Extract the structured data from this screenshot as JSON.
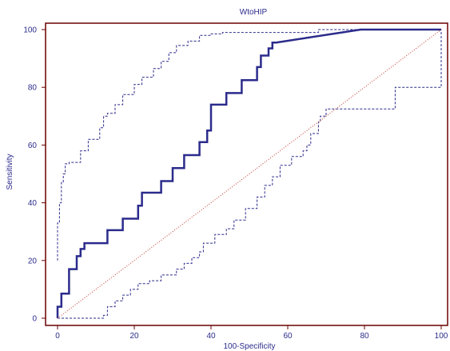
{
  "chart_data": {
    "type": "line",
    "title": "WtoHIP",
    "xlabel": "100-Specificity",
    "ylabel": "Sensitivity",
    "xlim": [
      0,
      100
    ],
    "ylim": [
      0,
      100
    ],
    "xticks": [
      0,
      20,
      40,
      60,
      80,
      100
    ],
    "yticks": [
      0,
      20,
      40,
      60,
      80,
      100
    ],
    "grid": false,
    "colors": {
      "frame": "#6b0000",
      "roc": "#2b2b8c",
      "ci": "#2b2b8c",
      "diagonal": "#c0392b",
      "text": "#2b2b8c"
    },
    "series": [
      {
        "style": "solid-thick",
        "x": [
          0,
          0,
          1,
          1,
          3,
          3,
          5,
          5,
          6,
          6,
          7,
          7,
          13,
          13,
          17,
          17,
          21,
          21,
          22,
          22,
          27,
          27,
          30,
          30,
          33,
          33,
          37,
          37,
          39,
          39,
          40,
          40,
          44,
          44,
          48,
          48,
          52,
          52,
          53,
          53,
          55,
          55,
          56,
          56,
          57,
          57,
          79,
          79,
          100
        ],
        "y": [
          0,
          4,
          4,
          8.5,
          8.5,
          17,
          17,
          21.5,
          21.5,
          24,
          24,
          26,
          26,
          30.5,
          30.5,
          34.5,
          34.5,
          39,
          39,
          43.5,
          43.5,
          47.5,
          47.5,
          52,
          52,
          56.5,
          56.5,
          61,
          61,
          65,
          65,
          74,
          74,
          78,
          78,
          82.5,
          82.5,
          87,
          87,
          91,
          91,
          93.5,
          93.5,
          95.5,
          95.5,
          95.5,
          100,
          100,
          100
        ]
      },
      {
        "style": "dashed",
        "x": [
          0,
          0,
          0.5,
          0.5,
          1,
          1,
          1.5,
          1.5,
          2,
          2,
          3,
          3,
          6,
          6,
          8,
          8,
          11,
          11,
          12,
          12,
          13,
          13,
          15,
          15,
          17,
          17,
          20,
          20,
          22,
          22,
          25,
          25,
          27,
          27,
          29,
          29,
          31,
          31,
          34,
          34,
          37,
          37,
          40,
          40,
          43,
          43,
          46,
          46,
          68,
          68,
          100
        ],
        "y": [
          20,
          33,
          33,
          40,
          40,
          47,
          47,
          50,
          50,
          53.5,
          53.5,
          54,
          54,
          58,
          58,
          62,
          62,
          66,
          66,
          70,
          70,
          71,
          71,
          74,
          74,
          77.5,
          77.5,
          81,
          81,
          83.5,
          83.5,
          86.5,
          86.5,
          89,
          89,
          92,
          92,
          94.5,
          94.5,
          96,
          96,
          98,
          98,
          98.5,
          98.5,
          99,
          99,
          99,
          99,
          100,
          100
        ]
      },
      {
        "style": "dashed",
        "x": [
          0,
          12,
          12,
          13,
          13,
          15,
          15,
          17,
          17,
          19,
          19,
          21,
          21,
          24,
          24,
          27,
          27,
          31,
          31,
          33,
          33,
          35,
          35,
          37,
          37,
          38,
          38,
          41,
          41,
          44,
          44,
          46,
          46,
          49,
          49,
          52,
          52,
          54,
          54,
          56,
          56,
          58,
          58,
          61,
          61,
          64,
          64,
          65,
          65,
          66,
          66,
          68,
          68,
          68.5,
          68.5,
          70,
          70,
          88,
          88,
          100,
          100
        ],
        "y": [
          0,
          0,
          1,
          1,
          4,
          4,
          6,
          6,
          8,
          8,
          10,
          10,
          12,
          12,
          13,
          13,
          15,
          15,
          17,
          17,
          19,
          19,
          21,
          21,
          23,
          23,
          26,
          26,
          29,
          29,
          31,
          31,
          34,
          34,
          38,
          38,
          42,
          42,
          46,
          46,
          49,
          49,
          53,
          53,
          56,
          56,
          58,
          58,
          60,
          60,
          64,
          64,
          68,
          68,
          70,
          70,
          72.5,
          72.5,
          80,
          80,
          100
        ]
      },
      {
        "style": "dotted",
        "x": [
          0,
          100
        ],
        "y": [
          0,
          100
        ]
      }
    ]
  }
}
